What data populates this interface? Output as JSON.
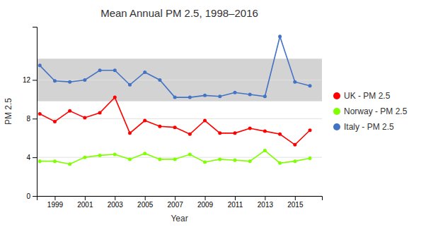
{
  "chart_data": {
    "type": "line",
    "title": "Mean Annual PM 2.5, 1998–2016",
    "x_label": "Year",
    "y_label": "PM 2.5",
    "x": [
      1998,
      1999,
      2000,
      2001,
      2002,
      2003,
      2004,
      2005,
      2006,
      2007,
      2008,
      2009,
      2010,
      2011,
      2012,
      2013,
      2014,
      2015,
      2016
    ],
    "series": [
      {
        "name": "UK - PM 2.5",
        "color": "#ff0000",
        "marker": "circle",
        "line_style": "solid",
        "values": [
          8.5,
          7.7,
          8.8,
          8.1,
          8.6,
          10.2,
          6.5,
          7.8,
          7.2,
          7.1,
          6.4,
          7.8,
          6.5,
          6.5,
          7.0,
          6.7,
          6.4,
          5.3,
          6.8
        ]
      },
      {
        "name": "Norway - PM 2.5",
        "color": "#7fff00",
        "marker": "circle",
        "line_style": "solid",
        "values": [
          3.6,
          3.6,
          3.3,
          4.0,
          4.2,
          4.3,
          3.8,
          4.4,
          3.8,
          3.8,
          4.3,
          3.5,
          3.8,
          3.7,
          3.6,
          4.7,
          3.4,
          3.6,
          3.9
        ]
      },
      {
        "name": "Italy - PM 2.5",
        "color": "#4472c4",
        "marker": "circle",
        "line_style": "solid",
        "values": [
          13.5,
          11.9,
          11.8,
          12.0,
          13.0,
          13.0,
          11.5,
          12.8,
          12.0,
          10.2,
          10.2,
          10.4,
          10.3,
          10.7,
          10.5,
          10.3,
          16.5,
          11.8,
          11.4
        ]
      }
    ],
    "shaded_band": {
      "ymin": 9.8,
      "ymax": 14.2,
      "color": "#d3d3d3"
    },
    "xlim": [
      1997.8,
      2016.8
    ],
    "xticks": [
      1999,
      2001,
      2003,
      2005,
      2007,
      2009,
      2011,
      2013,
      2015
    ],
    "ylim": [
      0,
      17.5
    ],
    "yticks": [
      0,
      4,
      8,
      12
    ],
    "grid": true,
    "legend": "right"
  }
}
